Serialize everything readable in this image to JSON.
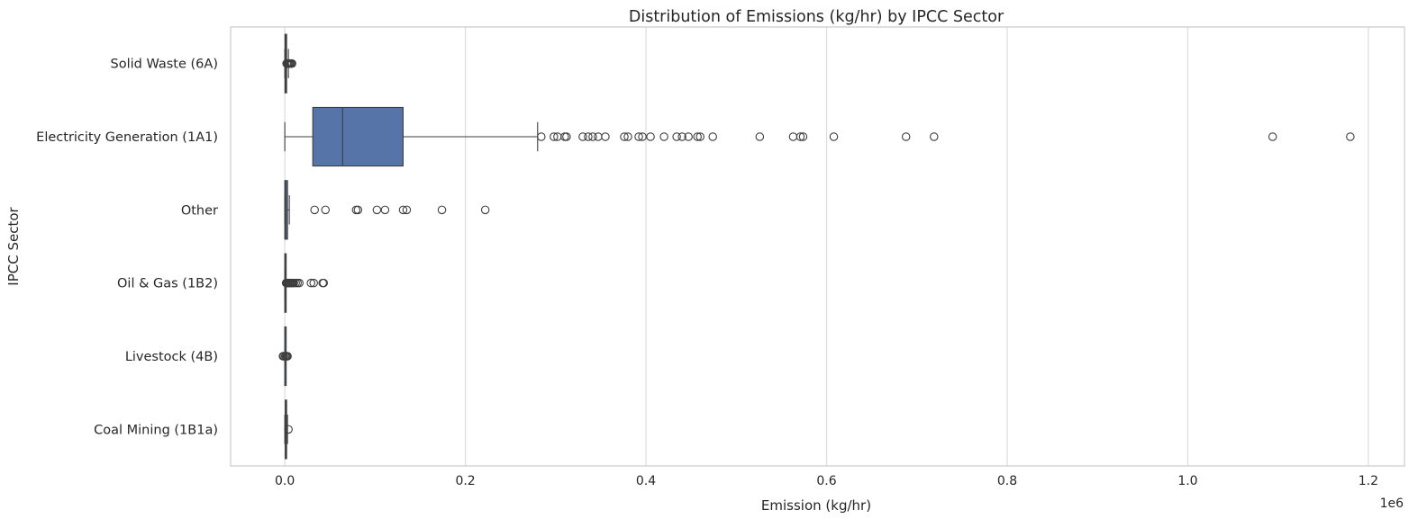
{
  "chart_data": {
    "type": "boxplot",
    "orientation": "horizontal",
    "title": "Distribution of Emissions (kg/hr) by IPCC Sector",
    "xlabel": "Emission (kg/hr)",
    "ylabel": "IPCC Sector",
    "x_offset_label": "1e6",
    "xlim": [
      -0.06,
      1.24
    ],
    "xticks": [
      0.0,
      0.2,
      0.4,
      0.6,
      0.8,
      1.0,
      1.2
    ],
    "xtick_labels": [
      "0.0",
      "0.2",
      "0.4",
      "0.6",
      "0.8",
      "1.0",
      "1.2"
    ],
    "grid": "vertical",
    "categories": [
      "Solid Waste (6A)",
      "Electricity Generation (1A1)",
      "Other",
      "Oil & Gas (1B2)",
      "Livestock (4B)",
      "Coal Mining (1B1a)"
    ],
    "colors": {
      "box": "#5674a8",
      "box_edge": "#3d3d3d",
      "grid": "#dddddd",
      "axes_edge": "#cccccc"
    },
    "boxes": [
      {
        "category": "Solid Waste (6A)",
        "whisker_low": 0.0,
        "q1": 0.0002,
        "median": 0.0008,
        "q3": 0.002,
        "whisker_high": 0.004,
        "outliers": [
          0.002,
          0.003,
          0.004,
          0.005,
          0.006,
          0.007,
          0.008
        ]
      },
      {
        "category": "Electricity Generation (1A1)",
        "whisker_low": 0.0,
        "q1": 0.031,
        "median": 0.064,
        "q3": 0.131,
        "whisker_high": 0.28,
        "outliers": [
          0.284,
          0.298,
          0.302,
          0.31,
          0.312,
          0.33,
          0.336,
          0.341,
          0.347,
          0.355,
          0.376,
          0.38,
          0.392,
          0.396,
          0.405,
          0.42,
          0.434,
          0.44,
          0.447,
          0.457,
          0.46,
          0.474,
          0.526,
          0.563,
          0.571,
          0.574,
          0.608,
          0.688,
          0.719,
          1.094,
          1.18
        ]
      },
      {
        "category": "Other",
        "whisker_low": 0.0,
        "q1": 0.0,
        "median": 0.001,
        "q3": 0.003,
        "whisker_high": 0.005,
        "outliers": [
          0.033,
          0.045,
          0.079,
          0.081,
          0.102,
          0.111,
          0.131,
          0.135,
          0.174,
          0.222
        ]
      },
      {
        "category": "Oil & Gas (1B2)",
        "whisker_low": 0.0,
        "q1": 0.0,
        "median": 0.0002,
        "q3": 0.0005,
        "whisker_high": 0.0012,
        "outliers": [
          0.0015,
          0.002,
          0.003,
          0.004,
          0.005,
          0.006,
          0.007,
          0.008,
          0.009,
          0.01,
          0.012,
          0.014,
          0.016,
          0.029,
          0.032,
          0.042,
          0.043
        ]
      },
      {
        "category": "Livestock (4B)",
        "whisker_low": 0.0,
        "q1": 0.0,
        "median": 0.0,
        "q3": 0.0001,
        "whisker_high": 0.0003,
        "outliers": [
          -0.002,
          -0.001,
          0.0005,
          0.001,
          0.002,
          0.003
        ]
      },
      {
        "category": "Coal Mining (1B1a)",
        "whisker_low": 0.0,
        "q1": 0.0005,
        "median": 0.001,
        "q3": 0.002,
        "whisker_high": 0.003,
        "outliers": [
          0.004
        ]
      }
    ]
  }
}
